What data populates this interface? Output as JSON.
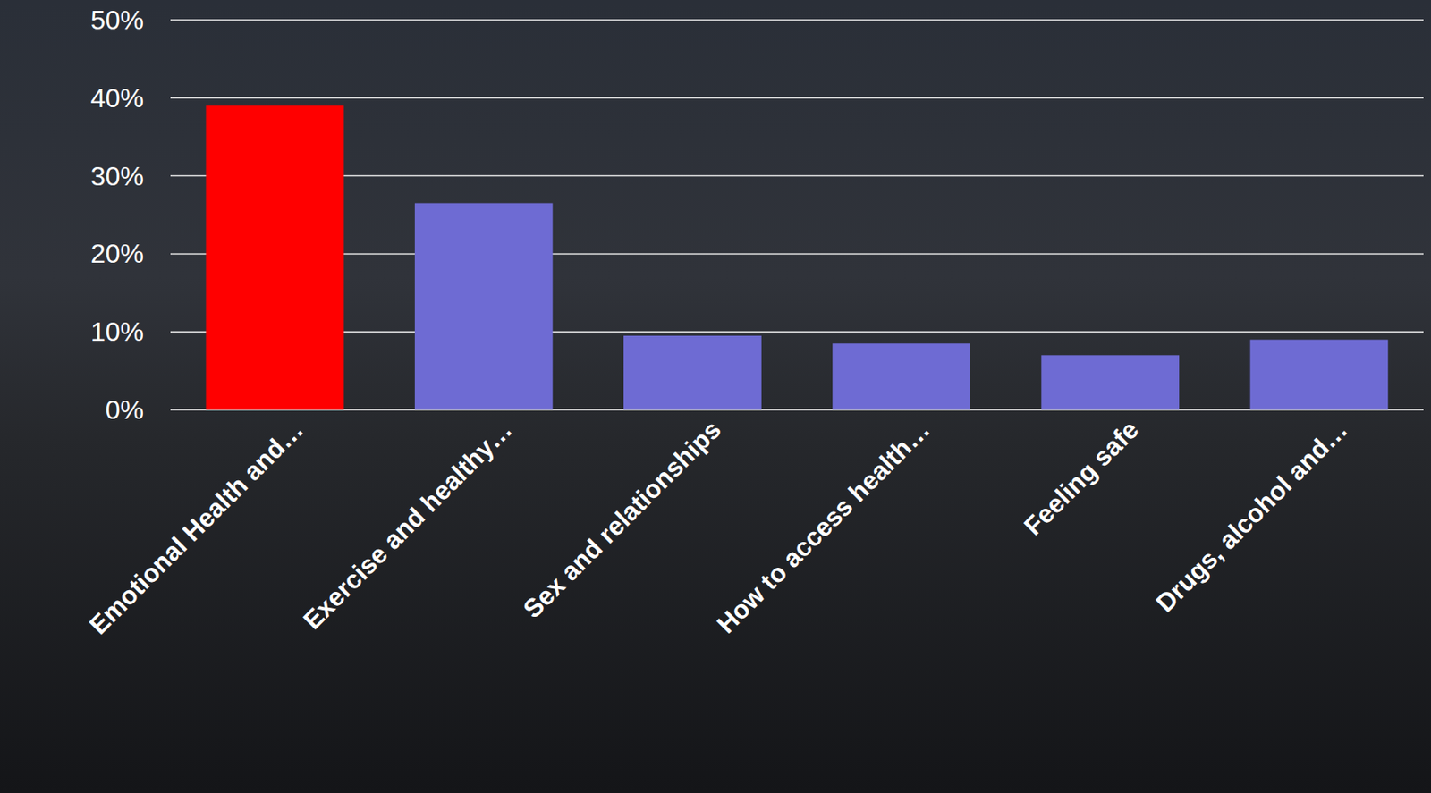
{
  "chart_data": {
    "type": "bar",
    "categories": [
      "Emotional Health and…",
      "Exercise and healthy…",
      "Sex and relationships",
      "How to access health…",
      "Feeling safe",
      "Drugs, alcohol and…"
    ],
    "values": [
      39,
      26.5,
      9.5,
      8.5,
      7,
      9
    ],
    "colors": [
      "#ff0000",
      "#6e6bd3",
      "#6e6bd3",
      "#6e6bd3",
      "#6e6bd3",
      "#6e6bd3"
    ],
    "ylim": [
      0,
      50
    ],
    "yticks": [
      {
        "value": 0,
        "label": "0%"
      },
      {
        "value": 10,
        "label": "10%"
      },
      {
        "value": 20,
        "label": "20%"
      },
      {
        "value": 30,
        "label": "30%"
      },
      {
        "value": 40,
        "label": "40%"
      },
      {
        "value": 50,
        "label": "50%"
      }
    ],
    "grid": true
  }
}
